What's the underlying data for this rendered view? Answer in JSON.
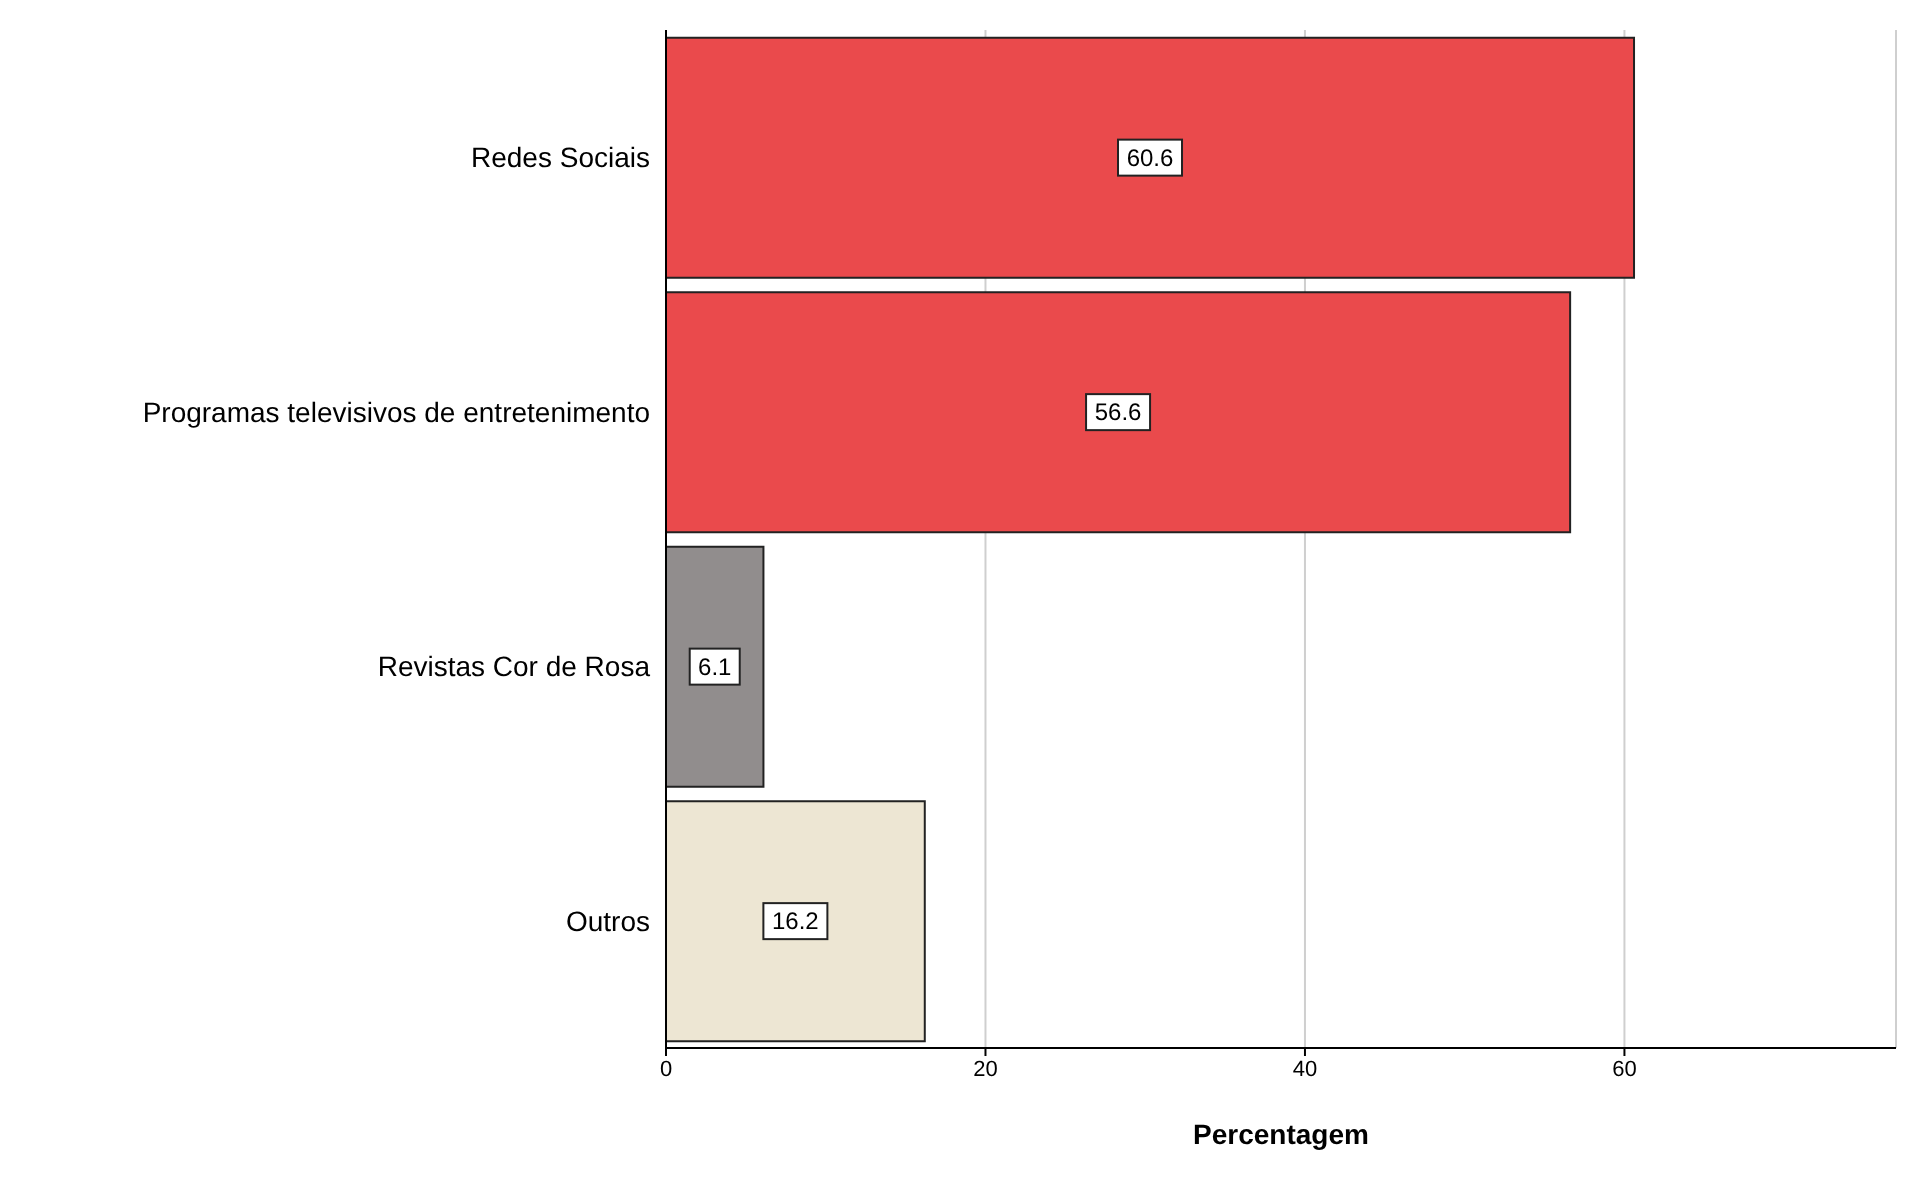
{
  "chart_data": {
    "type": "bar",
    "orientation": "horizontal",
    "xlabel": "Percentagem",
    "categories": [
      "Redes Sociais",
      "Programas televisivos de entretenimento",
      "Revistas Cor de Rosa",
      "Outros"
    ],
    "values": [
      60.6,
      56.6,
      6.1,
      16.2
    ],
    "colors": [
      "#ea4a4c",
      "#ea4a4c",
      "#918d8d",
      "#ede6d3"
    ],
    "xlim": [
      0,
      77
    ],
    "xticks": [
      0,
      20,
      40,
      60
    ],
    "grid": "x",
    "data_labels": true
  }
}
